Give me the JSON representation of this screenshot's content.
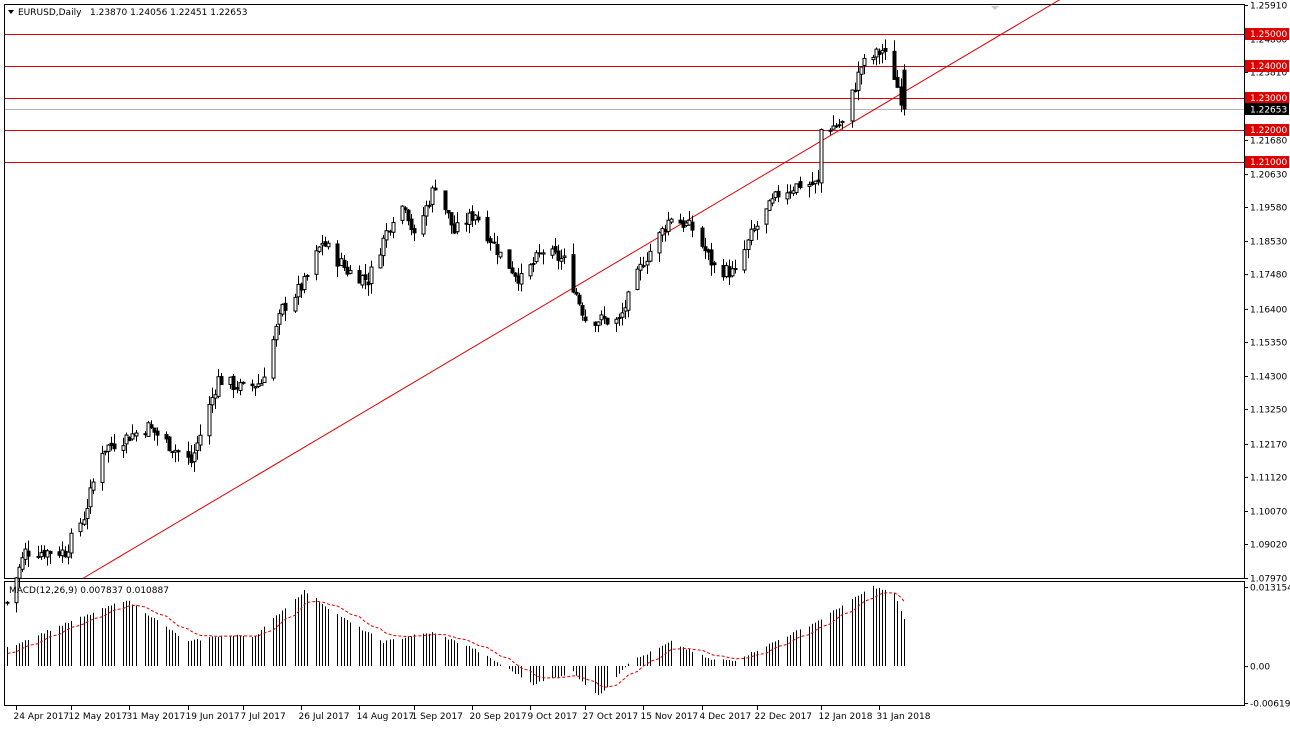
{
  "header": {
    "symbol": "EURUSD,Daily",
    "ohlc": "1.23870 1.24056 1.22451 1.22653"
  },
  "macd": {
    "label": "MACD(12,26,9) 0.007837 0.010887",
    "axis_labels": [
      "0.013154",
      "0.00",
      "-0.00619"
    ]
  },
  "colors": {
    "bull_body": "#ffffff",
    "bear_body": "#000000",
    "candle_outline": "#000000",
    "level_line": "#e00000",
    "trend_line": "#e00000",
    "level_badge": "#e00000",
    "price_badge": "#000000",
    "signal_line": "#e00000",
    "histogram": "#000000",
    "grid": "none"
  },
  "chart_data": [
    {
      "type": "candlestick",
      "title": "EURUSD,Daily",
      "ylim": [
        1.0797,
        1.2591
      ],
      "y_tick_labels": [
        "1.25910",
        "1.24860",
        "1.23810",
        "1.22760",
        "1.21680",
        "1.20630",
        "1.19580",
        "1.18530",
        "1.17480",
        "1.16400",
        "1.15350",
        "1.14300",
        "1.13250",
        "1.12170",
        "1.11120",
        "1.10070",
        "1.09020",
        "1.07970"
      ],
      "x_tick_labels": [
        "24 Apr 2017",
        "12 May 2017",
        "31 May 2017",
        "19 Jun 2017",
        "7 Jul 2017",
        "26 Jul 2017",
        "14 Aug 2017",
        "1 Sep 2017",
        "20 Sep 2017",
        "9 Oct 2017",
        "27 Oct 2017",
        "15 Nov 2017",
        "4 Dec 2017",
        "22 Dec 2017",
        "12 Jan 2018",
        "31 Jan 2018"
      ],
      "horizontal_levels": [
        1.25,
        1.24,
        1.23,
        1.22,
        1.21
      ],
      "level_labels": [
        "1.25000",
        "1.24000",
        "1.23000",
        "1.22000",
        "1.21000"
      ],
      "current_price": 1.22653,
      "current_price_label": "1.22653",
      "trendline": {
        "start": {
          "date": "16 May 2017",
          "price": 1.0797
        },
        "end": {
          "date": "8 Feb 2018",
          "price": 1.2318
        }
      },
      "anchors": [
        {
          "date": "21 Apr 2017",
          "close": 1.072
        },
        {
          "date": "27 Apr 2017",
          "close": 1.088
        },
        {
          "date": "10 May 2017",
          "close": 1.088
        },
        {
          "date": "16 May 2017",
          "close": 1.099
        },
        {
          "date": "22 May 2017",
          "close": 1.12
        },
        {
          "date": "6 Jun 2017",
          "close": 1.127
        },
        {
          "date": "20 Jun 2017",
          "close": 1.116
        },
        {
          "date": "29 Jun 2017",
          "close": 1.142
        },
        {
          "date": "7 Jul 2017",
          "close": 1.139
        },
        {
          "date": "13 Jul 2017",
          "close": 1.141
        },
        {
          "date": "20 Jul 2017",
          "close": 1.164
        },
        {
          "date": "27 Jul 2017",
          "close": 1.172
        },
        {
          "date": "2 Aug 2017",
          "close": 1.185
        },
        {
          "date": "10 Aug 2017",
          "close": 1.176
        },
        {
          "date": "17 Aug 2017",
          "close": 1.173
        },
        {
          "date": "25 Aug 2017",
          "close": 1.193
        },
        {
          "date": "29 Aug 2017",
          "close": 1.197
        },
        {
          "date": "1 Sep 2017",
          "close": 1.186
        },
        {
          "date": "8 Sep 2017",
          "close": 1.203
        },
        {
          "date": "14 Sep 2017",
          "close": 1.188
        },
        {
          "date": "21 Sep 2017",
          "close": 1.194
        },
        {
          "date": "29 Sep 2017",
          "close": 1.181
        },
        {
          "date": "6 Oct 2017",
          "close": 1.173
        },
        {
          "date": "13 Oct 2017",
          "close": 1.182
        },
        {
          "date": "20 Oct 2017",
          "close": 1.179
        },
        {
          "date": "27 Oct 2017",
          "close": 1.161
        },
        {
          "date": "7 Nov 2017",
          "close": 1.16
        },
        {
          "date": "15 Nov 2017",
          "close": 1.179
        },
        {
          "date": "24 Nov 2017",
          "close": 1.193
        },
        {
          "date": "1 Dec 2017",
          "close": 1.189
        },
        {
          "date": "8 Dec 2017",
          "close": 1.177
        },
        {
          "date": "15 Dec 2017",
          "close": 1.175
        },
        {
          "date": "20 Dec 2017",
          "close": 1.187
        },
        {
          "date": "29 Dec 2017",
          "close": 1.2
        },
        {
          "date": "5 Jan 2018",
          "close": 1.203
        },
        {
          "date": "11 Jan 2018",
          "close": 1.203
        },
        {
          "date": "12 Jan 2018",
          "close": 1.22
        },
        {
          "date": "19 Jan 2018",
          "close": 1.222
        },
        {
          "date": "25 Jan 2018",
          "close": 1.24
        },
        {
          "date": "1 Feb 2018",
          "close": 1.245
        },
        {
          "date": "5 Feb 2018",
          "close": 1.237
        },
        {
          "date": "8 Feb 2018",
          "close": 1.22653
        }
      ]
    },
    {
      "type": "bar",
      "title": "MACD(12,26,9) 0.007837 0.010887",
      "ylim": [
        -0.00619,
        0.013154
      ],
      "y_tick_labels": [
        "0.013154",
        "0.00",
        "-0.00619"
      ],
      "series": [
        {
          "name": "MACD",
          "values": "histogram"
        },
        {
          "name": "Signal",
          "values": "dashed line"
        }
      ],
      "anchors": [
        {
          "date": "21 Apr 2017",
          "value": 0.003
        },
        {
          "date": "5 May 2017",
          "value": 0.006
        },
        {
          "date": "30 May 2017",
          "value": 0.011
        },
        {
          "date": "19 Jun 2017",
          "value": 0.004
        },
        {
          "date": "29 Jun 2017",
          "value": 0.005
        },
        {
          "date": "11 Jul 2017",
          "value": 0.005
        },
        {
          "date": "27 Jul 2017",
          "value": 0.0125
        },
        {
          "date": "10 Aug 2017",
          "value": 0.0075
        },
        {
          "date": "22 Aug 2017",
          "value": 0.004
        },
        {
          "date": "31 Aug 2017",
          "value": 0.005
        },
        {
          "date": "7 Sep 2017",
          "value": 0.0055
        },
        {
          "date": "20 Sep 2017",
          "value": 0.003
        },
        {
          "date": "10 Oct 2017",
          "value": -0.003
        },
        {
          "date": "23 Oct 2017",
          "value": -0.001
        },
        {
          "date": "31 Oct 2017",
          "value": -0.005
        },
        {
          "date": "10 Nov 2017",
          "value": 0.0005
        },
        {
          "date": "24 Nov 2017",
          "value": 0.004
        },
        {
          "date": "7 Dec 2017",
          "value": 0.001
        },
        {
          "date": "15 Dec 2017",
          "value": 0.001
        },
        {
          "date": "3 Jan 2018",
          "value": 0.0055
        },
        {
          "date": "11 Jan 2018",
          "value": 0.0075
        },
        {
          "date": "29 Jan 2018",
          "value": 0.0132
        },
        {
          "date": "5 Feb 2018",
          "value": 0.012
        },
        {
          "date": "8 Feb 2018",
          "value": 0.0078
        }
      ]
    }
  ]
}
